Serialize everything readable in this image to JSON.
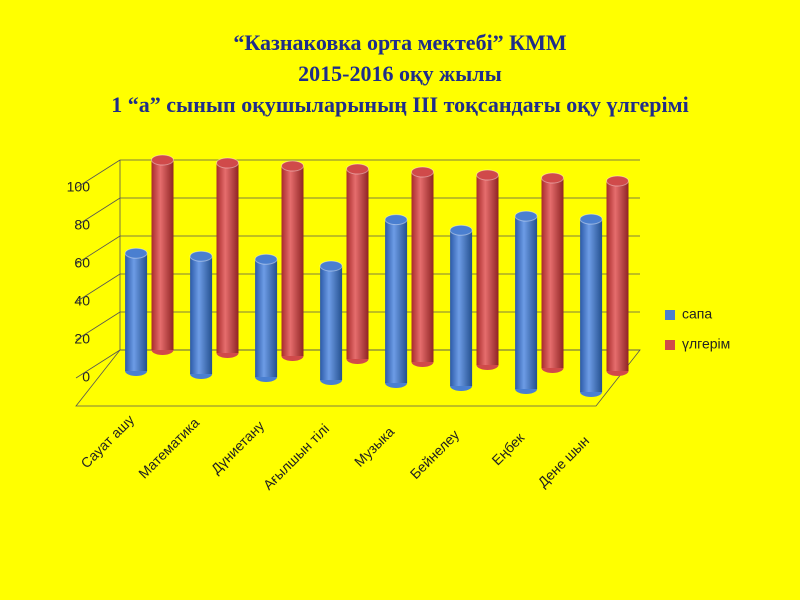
{
  "chart_data": {
    "type": "bar3d",
    "title": "“Казнаковка орта мектебі” КММ",
    "subtitle": [
      "2015-2016 оқу жылы",
      "1 “а” сынып оқушыларының ІІІ тоқсандағы  оқу үлгерімі"
    ],
    "categories": [
      "Сауат ашу",
      "Математика",
      "Дүниетану",
      "Ағылшын тілі",
      "Музыка",
      "Бейнелеу",
      "Еңбек",
      "Дене шын"
    ],
    "series": [
      {
        "name": "сапа",
        "color": "#4a7fd0",
        "values": [
          62,
          62,
          62,
          60,
          86,
          82,
          91,
          91
        ]
      },
      {
        "name": "үлгерім",
        "color": "#d04a4a",
        "values": [
          100,
          100,
          100,
          100,
          100,
          100,
          100,
          100
        ]
      }
    ],
    "ylim": [
      0,
      100
    ],
    "yticks": [
      0,
      20,
      40,
      60,
      80,
      100
    ],
    "grid": true,
    "legend": "right"
  }
}
